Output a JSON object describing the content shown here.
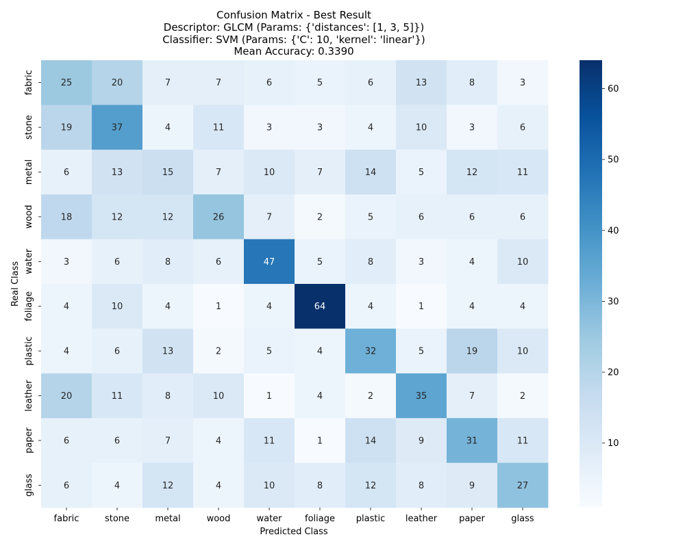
{
  "chart_data": {
    "type": "heatmap",
    "title_lines": [
      "Confusion Matrix - Best  Result",
      "Descriptor: GLCM (Params: {'distances': [1, 3, 5]})",
      "Classifier: SVM (Params: {'C': 10, 'kernel': 'linear'})",
      "Mean Accuracy: 0.3390"
    ],
    "xlabel": "Predicted Class",
    "ylabel": "Real Class",
    "x_categories": [
      "fabric",
      "stone",
      "metal",
      "wood",
      "water",
      "foliage",
      "plastic",
      "leather",
      "paper",
      "glass"
    ],
    "y_categories": [
      "fabric",
      "stone",
      "metal",
      "wood",
      "water",
      "foliage",
      "plastic",
      "leather",
      "paper",
      "glass"
    ],
    "matrix": [
      [
        25,
        20,
        7,
        7,
        6,
        5,
        6,
        13,
        8,
        3
      ],
      [
        19,
        37,
        4,
        11,
        3,
        3,
        4,
        10,
        3,
        6
      ],
      [
        6,
        13,
        15,
        7,
        10,
        7,
        14,
        5,
        12,
        11
      ],
      [
        18,
        12,
        12,
        26,
        7,
        2,
        5,
        6,
        6,
        6
      ],
      [
        3,
        6,
        8,
        6,
        47,
        5,
        8,
        3,
        4,
        10
      ],
      [
        4,
        10,
        4,
        1,
        4,
        64,
        4,
        1,
        4,
        4
      ],
      [
        4,
        6,
        13,
        2,
        5,
        4,
        32,
        5,
        19,
        10
      ],
      [
        20,
        11,
        8,
        10,
        1,
        4,
        2,
        35,
        7,
        2
      ],
      [
        6,
        6,
        7,
        4,
        11,
        1,
        14,
        9,
        31,
        11
      ],
      [
        6,
        4,
        12,
        4,
        10,
        8,
        12,
        8,
        9,
        27
      ]
    ],
    "colormap": "Blues",
    "value_range": [
      1,
      64
    ],
    "colorbar_ticks": [
      10,
      20,
      30,
      40,
      50,
      60
    ],
    "annotations": true
  }
}
